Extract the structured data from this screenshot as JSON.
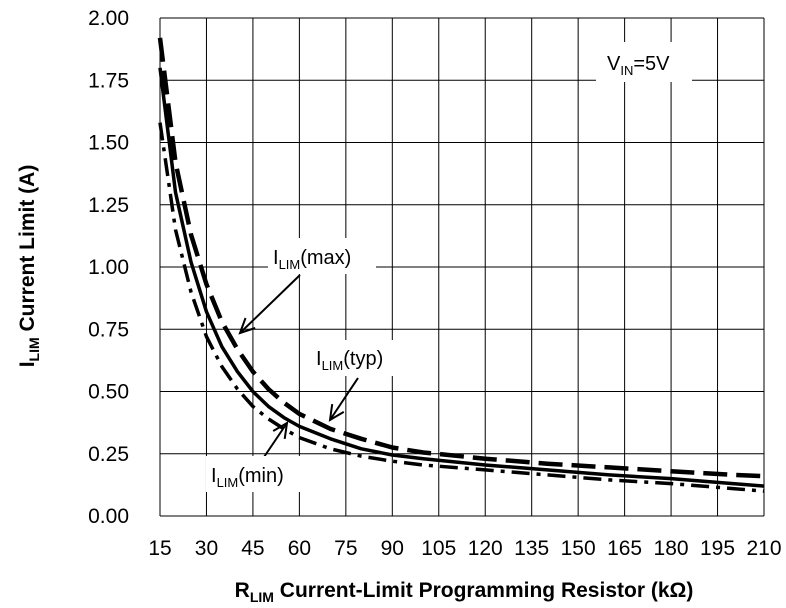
{
  "chart_data": {
    "type": "line",
    "xlabel": {
      "main": "R",
      "sub": "LIM",
      "rest": " Current-Limit Programming Resistor (kΩ)"
    },
    "ylabel": {
      "main": "I",
      "sub": "LIM",
      "rest": " Current Limit (A)"
    },
    "x_ticks": [
      "15",
      "30",
      "45",
      "60",
      "75",
      "90",
      "105",
      "120",
      "135",
      "150",
      "165",
      "180",
      "195",
      "210"
    ],
    "y_ticks": [
      "0.00",
      "0.25",
      "0.50",
      "0.75",
      "1.00",
      "1.25",
      "1.50",
      "1.75",
      "2.00"
    ],
    "xlim": [
      15,
      210
    ],
    "ylim": [
      0,
      2
    ],
    "grid": true,
    "condition": {
      "main": "V",
      "sub": "IN",
      "rest": "=5V"
    },
    "series": [
      {
        "name": "ILIM(max)",
        "style": "dashed",
        "x": [
          15,
          20,
          25,
          30,
          35,
          40,
          45,
          50,
          55,
          60,
          70,
          80,
          90,
          100,
          120,
          140,
          160,
          180,
          200,
          210
        ],
        "y": [
          1.92,
          1.42,
          1.13,
          0.93,
          0.78,
          0.67,
          0.58,
          0.51,
          0.455,
          0.41,
          0.35,
          0.31,
          0.275,
          0.255,
          0.23,
          0.21,
          0.195,
          0.18,
          0.165,
          0.16
        ]
      },
      {
        "name": "ILIM(typ)",
        "style": "solid",
        "x": [
          15,
          20,
          25,
          30,
          35,
          40,
          45,
          50,
          55,
          60,
          70,
          80,
          90,
          100,
          120,
          140,
          160,
          180,
          200,
          210
        ],
        "y": [
          1.8,
          1.3,
          1.02,
          0.82,
          0.68,
          0.58,
          0.5,
          0.44,
          0.395,
          0.36,
          0.31,
          0.27,
          0.245,
          0.23,
          0.205,
          0.185,
          0.165,
          0.15,
          0.13,
          0.12
        ]
      },
      {
        "name": "ILIM(min)",
        "style": "dash-dot",
        "x": [
          15,
          20,
          25,
          30,
          35,
          40,
          45,
          50,
          55,
          60,
          70,
          80,
          90,
          100,
          120,
          140,
          160,
          180,
          200,
          210
        ],
        "y": [
          1.58,
          1.15,
          0.9,
          0.72,
          0.6,
          0.51,
          0.44,
          0.39,
          0.35,
          0.315,
          0.27,
          0.24,
          0.22,
          0.205,
          0.185,
          0.165,
          0.145,
          0.13,
          0.11,
          0.1
        ]
      }
    ],
    "annotations": [
      {
        "main": "I",
        "sub": "LIM",
        "rest": "(max)"
      },
      {
        "main": "I",
        "sub": "LIM",
        "rest": "(typ)"
      },
      {
        "main": "I",
        "sub": "LIM",
        "rest": "(min)"
      }
    ]
  }
}
